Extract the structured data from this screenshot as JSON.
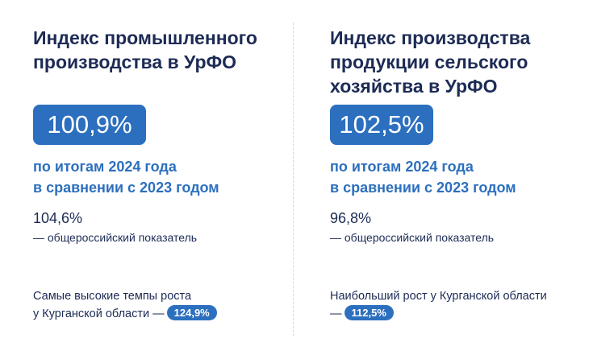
{
  "left": {
    "title_line1": "Индекс промышленного",
    "title_line2": "производства в УрФО",
    "value": "100,9%",
    "compare_line1": "по итогам 2024 года",
    "compare_line2": "в сравнении с 2023 годом",
    "ref_value": "104,6%",
    "ref_caption": "— общероссийский показатель",
    "note_line1": "Самые высокие темпы роста",
    "note_line2": "у Курганской области —",
    "note_value": "124,9%"
  },
  "right": {
    "title_line1": "Индекс производства",
    "title_line2": "продукции сельского",
    "title_line3": "хозяйства в УрФО",
    "value": "102,5%",
    "compare_line1": "по итогам 2024 года",
    "compare_line2": "в сравнении с 2023 годом",
    "ref_value": "96,8%",
    "ref_caption": "— общероссийский показатель",
    "note_line1": "Наибольший рост у Курганской области",
    "note_line2": "—",
    "note_value": "112,5%"
  },
  "colors": {
    "accent": "#2c6fbe",
    "text": "#1d2b55",
    "divider": "#bfe3e6"
  }
}
